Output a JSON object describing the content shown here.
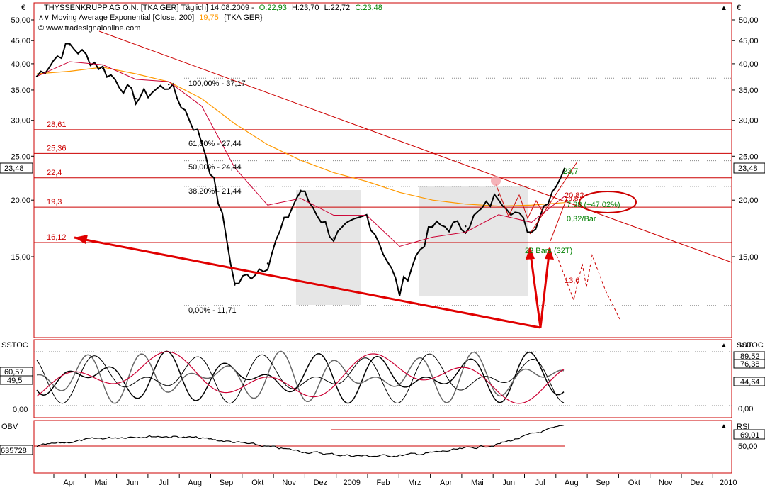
{
  "header": {
    "currency": "€",
    "line1": "THYSSENKRUPP AG O.N. [TKA GER] Täglich] 14.08.2009 - O:22,93 H:23,70 L:22,72 C:23,48",
    "line1_parts": {
      "name": "THYSSENKRUPP AG O.N. [TKA GER]  Täglich] 14.08.2009 -",
      "open": "O:22,93",
      "high": "H:23,70",
      "low": "L:22,72",
      "close": "C:23,48"
    },
    "line2_parts": {
      "label": "Moving Average Exponential [Close, 200]",
      "value": "19,75",
      "tail": "{TKA GER}"
    },
    "line3": "© www.tradesignalonline.com"
  },
  "colors": {
    "price": "#000000",
    "ema200": "#ff9900",
    "ema50": "#cc0033",
    "levels": "#cc0000",
    "fib_text": "#000000",
    "target_text": "#008000",
    "panel_border": "#cc0000",
    "shade": "#e6e6e6",
    "grid": "#999999"
  },
  "price_axis": {
    "labels": [
      "50,00",
      "45,00",
      "40,00",
      "35,00",
      "30,00",
      "25,00",
      "20,00",
      "15,00"
    ],
    "values": [
      50,
      45,
      40,
      35,
      30,
      25,
      20,
      15
    ],
    "scale": "log",
    "current_value": "23,48"
  },
  "time_axis": {
    "labels": [
      "Apr",
      "Mai",
      "Jun",
      "Jul",
      "Aug",
      "Sep",
      "Okt",
      "Nov",
      "Dez",
      "2009",
      "Feb",
      "Mrz",
      "Apr",
      "Mai",
      "Jun",
      "Jul",
      "Aug",
      "Sep",
      "Okt",
      "Nov",
      "Dez",
      "2010"
    ]
  },
  "horizontal_levels": [
    {
      "label": "28,61",
      "value": 28.61
    },
    {
      "label": "25,36",
      "value": 25.36
    },
    {
      "label": "22,4",
      "value": 22.4
    },
    {
      "label": "19,3",
      "value": 19.3
    },
    {
      "label": "16,12",
      "value": 16.12
    }
  ],
  "fibonacci": [
    {
      "label": "100,00% - 37,17",
      "value": 37.17
    },
    {
      "label": "61,80% - 27,44",
      "value": 27.44
    },
    {
      "label": "50,00% - 24,44",
      "value": 24.44
    },
    {
      "label": "38,20% - 21,44",
      "value": 21.44
    },
    {
      "label": "0,00% - 11,71",
      "value": 11.71
    }
  ],
  "annotations": {
    "target_high": "23,7",
    "target_a": "20,82",
    "target_b": "19,8",
    "move": "7,38 (+47,02%)",
    "slope": "0,32/Bar",
    "bars": "23 Bars (32T)",
    "projection_low": "13,6"
  },
  "sstoc": {
    "title": "SSTOC",
    "left_labels": [
      "60,57",
      "49,5",
      "0,00"
    ],
    "right_labels": [
      "100",
      "89,52",
      "76,38",
      "44,64",
      "0,00"
    ]
  },
  "obv": {
    "title": "OBV",
    "left_label": "635728"
  },
  "rsi": {
    "title": "RSI",
    "right_labels": [
      "69,01",
      "50,00"
    ]
  },
  "chart_data": {
    "type": "line",
    "title": "THYSSENKRUPP AG O.N. [TKA GER]",
    "ylabel": "€",
    "ylim": [
      11,
      51
    ],
    "scale": "log",
    "x": [
      "2008-04",
      "2008-05",
      "2008-06",
      "2008-07",
      "2008-08",
      "2008-09",
      "2008-10",
      "2008-11",
      "2008-12",
      "2009-01",
      "2009-02",
      "2009-03",
      "2009-04",
      "2009-05",
      "2009-06",
      "2009-07",
      "2009-08"
    ],
    "series": [
      {
        "name": "THYSSENKRUPP AG O.N.",
        "values": [
          37.5,
          44.0,
          39.0,
          33.5,
          36.0,
          27.0,
          13.0,
          14.5,
          21.0,
          16.5,
          18.5,
          12.5,
          17.5,
          17.5,
          20.5,
          17.0,
          23.48
        ]
      },
      {
        "name": "Moving Average Exponential [Close, 200]",
        "values": [
          38.0,
          38.5,
          39.3,
          38.0,
          36.5,
          33.5,
          29.5,
          26.5,
          24.5,
          23.0,
          22.0,
          20.8,
          20.0,
          19.6,
          19.4,
          19.5,
          19.75
        ]
      }
    ]
  }
}
